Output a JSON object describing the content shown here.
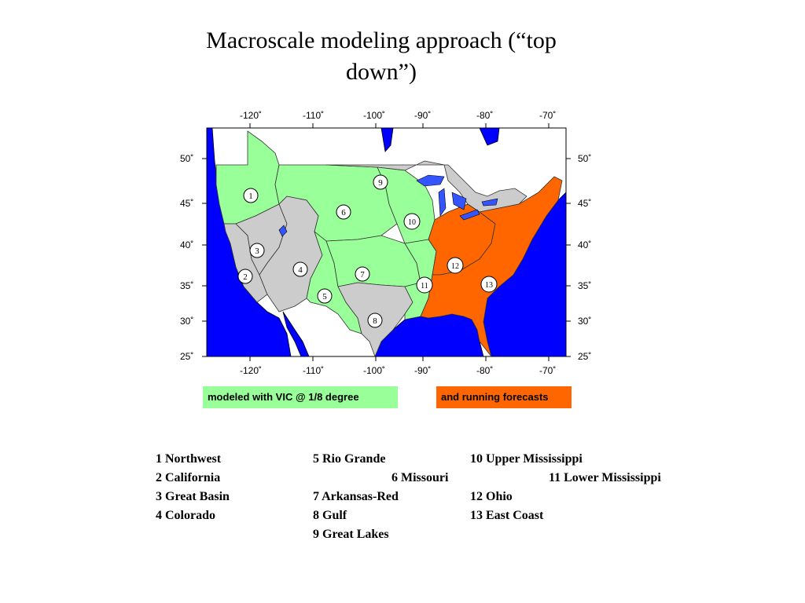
{
  "title_line1": "Macroscale modeling approach (“top",
  "title_line2": "down”)",
  "map": {
    "lon_ticks": [
      "-120˚",
      "-110˚",
      "-100˚",
      "-90˚",
      "-80˚",
      "-70˚"
    ],
    "lat_ticks": [
      "50˚",
      "45˚",
      "40˚",
      "35˚",
      "30˚",
      "25˚"
    ],
    "colors": {
      "ocean": "#0000ff",
      "modeled": "#99ff99",
      "forecast": "#ff6600",
      "other_basin": "#cccccc",
      "land": "#ffffff"
    },
    "basin_markers": [
      "1",
      "2",
      "3",
      "4",
      "5",
      "6",
      "7",
      "8",
      "9",
      "10",
      "11",
      "12",
      "13"
    ]
  },
  "legend": {
    "modeled_label": "modeled with VIC @ 1/8 degree",
    "forecast_label": "and running forecasts"
  },
  "basins": {
    "col1": [
      "1 Northwest",
      "2 California",
      "3 Great Basin",
      "4 Colorado"
    ],
    "col2": [
      "5 Rio Grande",
      "6 Missouri",
      "7 Arkansas-Red",
      "8 Gulf",
      "9 Great Lakes"
    ],
    "col3": [
      "10 Upper Mississippi",
      "11 Lower Mississippi",
      "12 Ohio",
      "13 East Coast"
    ]
  }
}
